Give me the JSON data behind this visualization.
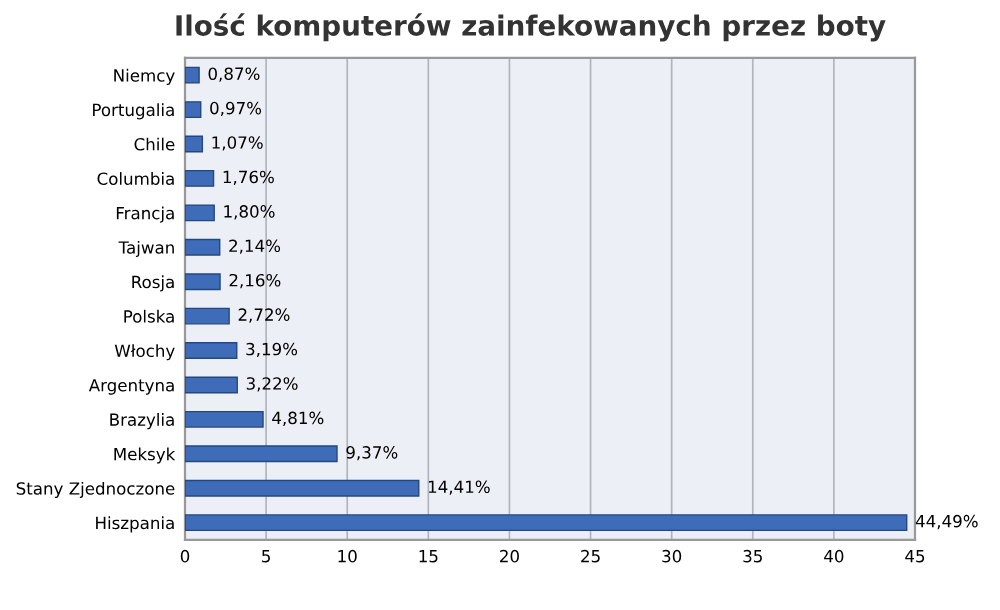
{
  "chart_data": {
    "type": "bar",
    "orientation": "horizontal",
    "title": "Ilość komputerów zainfekowanych przez boty",
    "categories": [
      "Niemcy",
      "Portugalia",
      "Chile",
      "Columbia",
      "Francja",
      "Tajwan",
      "Rosja",
      "Polska",
      "Włochy",
      "Argentyna",
      "Brazylia",
      "Meksyk",
      "Stany Zjednoczone",
      "Hiszpania"
    ],
    "values": [
      0.87,
      0.97,
      1.07,
      1.76,
      1.8,
      2.14,
      2.16,
      2.72,
      3.19,
      3.22,
      4.81,
      9.37,
      14.41,
      44.49
    ],
    "value_labels": [
      "0,87%",
      "0,97%",
      "1,07%",
      "1,76%",
      "1,80%",
      "2,14%",
      "2,16%",
      "2,72%",
      "3,19%",
      "3,22%",
      "4,81%",
      "9,37%",
      "14,41%",
      "44,49%"
    ],
    "color": "#3e6cb8",
    "xlim": [
      0,
      45
    ],
    "xticks": [
      0,
      5,
      10,
      15,
      20,
      25,
      30,
      35,
      40,
      45
    ],
    "grid": "x"
  }
}
